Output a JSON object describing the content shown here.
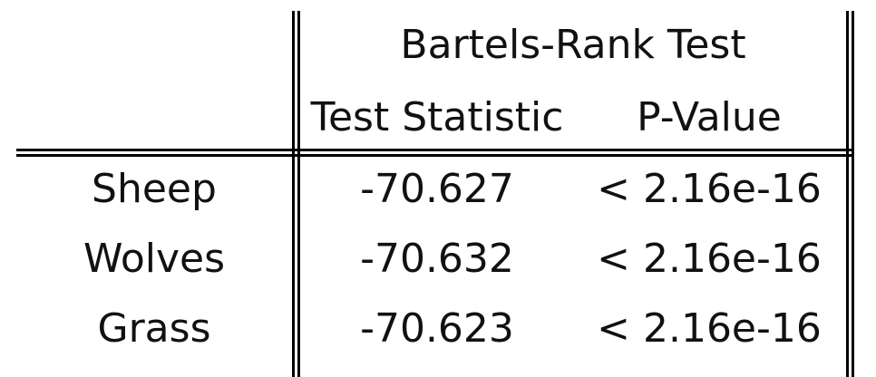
{
  "table": {
    "group_header": "Bartels-Rank Test",
    "columns": [
      "Test Statistic",
      "P-Value"
    ],
    "rows": [
      {
        "label": "Sheep",
        "statistic": "-70.627",
        "p_value": "< 2.16e-16"
      },
      {
        "label": "Wolves",
        "statistic": "-70.632",
        "p_value": "< 2.16e-16"
      },
      {
        "label": "Grass",
        "statistic": "-70.623",
        "p_value": "< 2.16e-16"
      }
    ]
  }
}
